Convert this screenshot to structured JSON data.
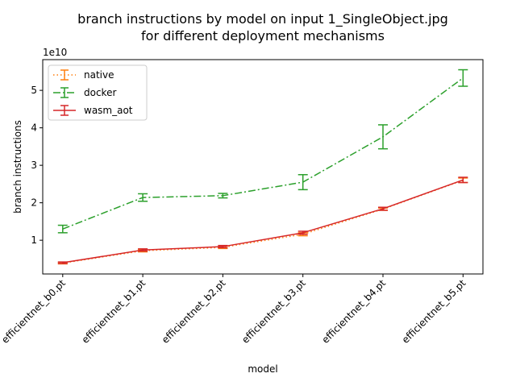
{
  "chart_data": {
    "type": "line",
    "title_line1": "branch instructions by model on input 1_SingleObject.jpg",
    "title_line2": "for different deployment mechanisms",
    "xlabel": "model",
    "ylabel": "branch instructions",
    "y_offset_label": "1e10",
    "categories": [
      "efficientnet_b0.pt",
      "efficientnet_b1.pt",
      "efficientnet_b2.pt",
      "efficientnet_b3.pt",
      "efficientnet_b4.pt",
      "efficientnet_b5.pt"
    ],
    "ylim": [
      1000000000.0,
      58200000000.0
    ],
    "yticks": [
      {
        "value": 10000000000.0,
        "label": "1"
      },
      {
        "value": 20000000000.0,
        "label": "2"
      },
      {
        "value": 30000000000.0,
        "label": "3"
      },
      {
        "value": 40000000000.0,
        "label": "4"
      },
      {
        "value": 50000000000.0,
        "label": "5"
      }
    ],
    "legend_position": "top-left",
    "series": [
      {
        "name": "native",
        "color": "#ff7f0e",
        "dash": "1.5,3",
        "values": [
          3900000000.0,
          7200000000.0,
          8100000000.0,
          11600000000.0,
          18300000000.0,
          26000000000.0
        ],
        "errors": [
          200000000.0,
          300000000.0,
          300000000.0,
          400000000.0,
          300000000.0,
          600000000.0
        ]
      },
      {
        "name": "docker",
        "color": "#2ca02c",
        "dash": "9,3,2,3",
        "values": [
          13000000000.0,
          21400000000.0,
          21900000000.0,
          25500000000.0,
          37600000000.0,
          53300000000.0
        ],
        "errors": [
          1000000000.0,
          1000000000.0,
          600000000.0,
          2000000000.0,
          3200000000.0,
          2200000000.0
        ]
      },
      {
        "name": "wasm_aot",
        "color": "#d62728",
        "dash": "",
        "values": [
          4000000000.0,
          7400000000.0,
          8300000000.0,
          12000000000.0,
          18400000000.0,
          26100000000.0
        ],
        "errors": [
          200000000.0,
          300000000.0,
          300000000.0,
          400000000.0,
          400000000.0,
          700000000.0
        ]
      }
    ]
  }
}
